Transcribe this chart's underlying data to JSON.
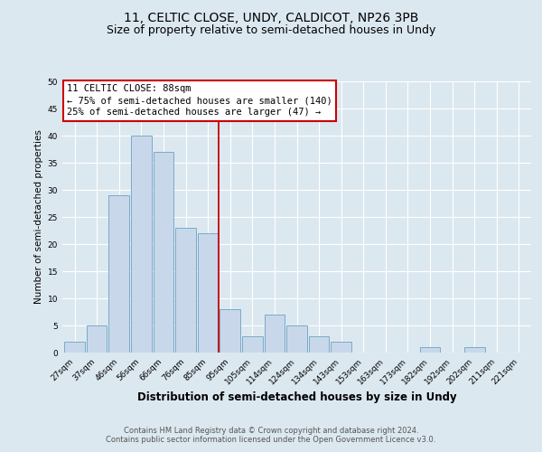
{
  "title": "11, CELTIC CLOSE, UNDY, CALDICOT, NP26 3PB",
  "subtitle": "Size of property relative to semi-detached houses in Undy",
  "xlabel": "Distribution of semi-detached houses by size in Undy",
  "ylabel": "Number of semi-detached properties",
  "bar_labels": [
    "27sqm",
    "37sqm",
    "46sqm",
    "56sqm",
    "66sqm",
    "76sqm",
    "85sqm",
    "95sqm",
    "105sqm",
    "114sqm",
    "124sqm",
    "134sqm",
    "143sqm",
    "153sqm",
    "163sqm",
    "173sqm",
    "182sqm",
    "192sqm",
    "202sqm",
    "211sqm",
    "221sqm"
  ],
  "bar_values": [
    2,
    5,
    29,
    40,
    37,
    23,
    22,
    8,
    3,
    7,
    5,
    3,
    2,
    0,
    0,
    0,
    1,
    0,
    1,
    0,
    0
  ],
  "bar_color": "#c8d8ea",
  "bar_edge_color": "#7aaac8",
  "vline_color": "#cc0000",
  "annotation_title": "11 CELTIC CLOSE: 88sqm",
  "annotation_line1": "← 75% of semi-detached houses are smaller (140)",
  "annotation_line2": "25% of semi-detached houses are larger (47) →",
  "annotation_box_color": "#ffffff",
  "annotation_edge_color": "#cc0000",
  "ylim": [
    0,
    50
  ],
  "yticks": [
    0,
    5,
    10,
    15,
    20,
    25,
    30,
    35,
    40,
    45,
    50
  ],
  "bg_color": "#dce8f0",
  "plot_bg_color": "#dce8f0",
  "footer1": "Contains HM Land Registry data © Crown copyright and database right 2024.",
  "footer2": "Contains public sector information licensed under the Open Government Licence v3.0.",
  "title_fontsize": 10,
  "subtitle_fontsize": 9,
  "xlabel_fontsize": 8.5,
  "ylabel_fontsize": 7.5,
  "tick_fontsize": 6.5,
  "annotation_fontsize": 7.5,
  "footer_fontsize": 6
}
